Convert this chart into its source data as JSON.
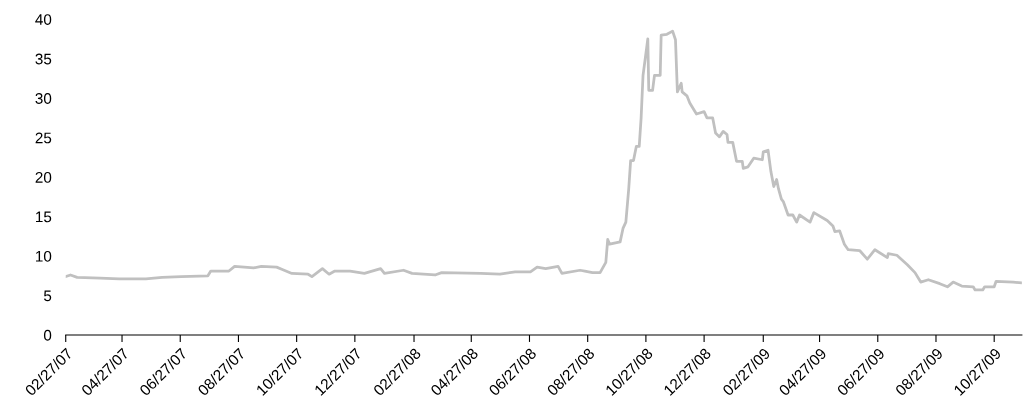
{
  "chart_data": {
    "type": "line",
    "grid": false,
    "marker": "none",
    "line_style": "solid",
    "x": [
      "2007-02-27",
      "2007-03-04",
      "2007-03-11",
      "2007-04-04",
      "2007-04-24",
      "2007-05-22",
      "2007-06-08",
      "2007-06-28",
      "2007-07-26",
      "2007-07-29",
      "2007-08-17",
      "2007-08-23",
      "2007-09-12",
      "2007-09-20",
      "2007-10-06",
      "2007-10-12",
      "2007-10-22",
      "2007-11-08",
      "2007-11-12",
      "2007-11-23",
      "2007-11-30",
      "2007-12-06",
      "2007-12-22",
      "2008-01-06",
      "2008-01-23",
      "2008-01-27",
      "2008-02-16",
      "2008-02-25",
      "2008-03-20",
      "2008-03-27",
      "2008-05-07",
      "2008-05-27",
      "2008-06-12",
      "2008-06-28",
      "2008-07-05",
      "2008-07-14",
      "2008-07-27",
      "2008-07-31",
      "2008-08-19",
      "2008-08-24",
      "2008-09-01",
      "2008-09-09",
      "2008-09-15",
      "2008-09-17",
      "2008-09-19",
      "2008-09-30",
      "2008-10-03",
      "2008-10-06",
      "2008-10-09",
      "2008-10-11",
      "2008-10-14",
      "2008-10-17",
      "2008-10-20",
      "2008-10-22",
      "2008-10-24",
      "2008-10-29",
      "2008-10-30",
      "2008-11-03",
      "2008-11-05",
      "2008-11-11",
      "2008-11-12",
      "2008-11-18",
      "2008-11-24",
      "2008-11-27",
      "2008-11-29",
      "2008-12-03",
      "2008-12-04",
      "2008-12-09",
      "2008-12-12",
      "2008-12-19",
      "2008-12-27",
      "2008-12-30",
      "2009-01-05",
      "2009-01-08",
      "2009-01-12",
      "2009-01-16",
      "2009-01-20",
      "2009-01-21",
      "2009-01-26",
      "2009-01-30",
      "2009-02-05",
      "2009-02-06",
      "2009-02-11",
      "2009-02-17",
      "2009-02-26",
      "2009-02-27",
      "2009-03-04",
      "2009-03-07",
      "2009-03-10",
      "2009-03-13",
      "2009-03-15",
      "2009-03-18",
      "2009-03-20",
      "2009-03-25",
      "2009-03-30",
      "2009-04-03",
      "2009-04-06",
      "2009-04-17",
      "2009-04-21",
      "2009-05-05",
      "2009-05-11",
      "2009-05-13",
      "2009-05-18",
      "2009-05-23",
      "2009-05-27",
      "2009-06-08",
      "2009-06-16",
      "2009-06-24",
      "2009-07-07",
      "2009-07-08",
      "2009-07-17",
      "2009-07-28",
      "2009-08-05",
      "2009-08-11",
      "2009-08-19",
      "2009-08-31",
      "2009-09-08",
      "2009-09-14",
      "2009-09-23",
      "2009-10-05",
      "2009-10-07",
      "2009-10-15",
      "2009-10-17",
      "2009-10-27",
      "2009-10-29",
      "2009-11-16",
      "2009-11-25"
    ],
    "series": [
      {
        "color": "#c0c0c0",
        "values": [
          7.4,
          7.6,
          7.3,
          7.2,
          7.1,
          7.1,
          7.3,
          7.4,
          7.5,
          8.1,
          8.1,
          8.7,
          8.5,
          8.7,
          8.6,
          8.3,
          7.8,
          7.7,
          7.4,
          8.4,
          7.7,
          8.1,
          8.1,
          7.8,
          8.4,
          7.8,
          8.2,
          7.8,
          7.6,
          7.9,
          7.8,
          7.7,
          8.0,
          8.0,
          8.6,
          8.4,
          8.7,
          7.8,
          8.2,
          8.1,
          7.9,
          7.9,
          9.2,
          12.1,
          11.5,
          11.8,
          13.5,
          14.3,
          18.5,
          22.1,
          22.1,
          23.9,
          23.9,
          27.5,
          32.9,
          37.5,
          31.0,
          31.0,
          32.9,
          32.9,
          38.0,
          38.1,
          38.5,
          37.4,
          30.8,
          31.9,
          30.8,
          30.3,
          29.4,
          28.0,
          28.3,
          27.5,
          27.5,
          25.6,
          25.1,
          25.8,
          25.4,
          24.4,
          24.4,
          22.0,
          22.0,
          21.1,
          21.3,
          22.4,
          22.2,
          23.2,
          23.4,
          20.7,
          18.8,
          19.7,
          18.5,
          17.2,
          16.9,
          15.2,
          15.2,
          14.3,
          15.2,
          14.3,
          15.5,
          14.5,
          13.8,
          13.1,
          13.2,
          11.5,
          10.8,
          10.7,
          9.6,
          10.8,
          9.8,
          10.3,
          10.1,
          8.9,
          7.9,
          6.7,
          7.0,
          6.5,
          6.1,
          6.7,
          6.2,
          6.1,
          5.7,
          5.7,
          6.1,
          6.1,
          6.8,
          6.7,
          6.6
        ]
      }
    ],
    "xlim": [
      "2007-02-27",
      "2009-11-25"
    ],
    "xticks": [
      {
        "value": "2007-02-27",
        "label": "02/27/07"
      },
      {
        "value": "2007-04-27",
        "label": "04/27/07"
      },
      {
        "value": "2007-06-27",
        "label": "06/27/07"
      },
      {
        "value": "2007-08-27",
        "label": "08/27/07"
      },
      {
        "value": "2007-10-27",
        "label": "10/27/07"
      },
      {
        "value": "2007-12-27",
        "label": "12/27/07"
      },
      {
        "value": "2008-02-27",
        "label": "02/27/08"
      },
      {
        "value": "2008-04-27",
        "label": "04/27/08"
      },
      {
        "value": "2008-06-27",
        "label": "06/27/08"
      },
      {
        "value": "2008-08-27",
        "label": "08/27/08"
      },
      {
        "value": "2008-10-27",
        "label": "10/27/08"
      },
      {
        "value": "2008-12-27",
        "label": "12/27/08"
      },
      {
        "value": "2009-02-27",
        "label": "02/27/09"
      },
      {
        "value": "2009-04-27",
        "label": "04/27/09"
      },
      {
        "value": "2009-06-27",
        "label": "06/27/09"
      },
      {
        "value": "2009-08-27",
        "label": "08/27/09"
      },
      {
        "value": "2009-10-27",
        "label": "10/27/09"
      }
    ],
    "ylim": [
      0,
      40
    ],
    "yticks": [
      0,
      5,
      10,
      15,
      20,
      25,
      30,
      35,
      40
    ]
  }
}
